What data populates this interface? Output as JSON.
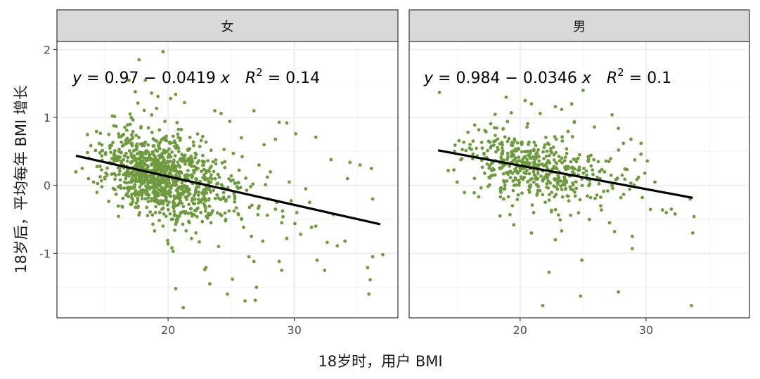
{
  "chart_data": {
    "type": "scatter",
    "xlabel": "18岁时，用户 BMI",
    "ylabel": "18岁后，平均每年 BMI 增长",
    "xlim": [
      11.2,
      38.2
    ],
    "ylim": [
      -1.95,
      2.12
    ],
    "xticks": [
      20,
      30
    ],
    "yticks": [
      -1,
      0,
      1,
      2
    ],
    "grid": true,
    "point_color": "#6f9a3f",
    "line_color": "#000000",
    "panels": [
      {
        "strip": "女",
        "eq_y": "y",
        "eq_body": " = 0.97 − 0.0419 ",
        "eq_x": "x",
        "eq_r": "R",
        "eq_sup": "2",
        "eq_tail": " = 0.14",
        "intercept": 0.97,
        "slope": -0.0419,
        "r2": 0.14,
        "line_x": [
          12.7,
          36.8
        ],
        "outliers": [
          [
            17.7,
            1.85
          ],
          [
            19.6,
            1.97
          ],
          [
            18.2,
            1.55
          ],
          [
            16.9,
            1.55
          ],
          [
            17.4,
            1.38
          ],
          [
            18.7,
            1.36
          ],
          [
            19.2,
            1.31
          ],
          [
            20.2,
            1.28
          ],
          [
            21.3,
            1.22
          ],
          [
            20.6,
            1.34
          ],
          [
            23.7,
            1.1
          ],
          [
            24.2,
            1.06
          ],
          [
            26.8,
            1.1
          ],
          [
            28.8,
            0.93
          ],
          [
            29.4,
            0.92
          ],
          [
            30.1,
            0.76
          ],
          [
            31.7,
            0.71
          ],
          [
            28.5,
            0.68
          ],
          [
            27.6,
            0.6
          ],
          [
            25.8,
            0.7
          ],
          [
            32.9,
            0.38
          ],
          [
            34.4,
            0.34
          ],
          [
            35.2,
            0.3
          ],
          [
            36.1,
            0.25
          ],
          [
            34.2,
            0.1
          ],
          [
            36.2,
            -0.2
          ],
          [
            33.1,
            -0.43
          ],
          [
            31.7,
            -0.6
          ],
          [
            30.5,
            -0.72
          ],
          [
            29.4,
            -0.78
          ],
          [
            32.6,
            -0.84
          ],
          [
            34.0,
            -0.82
          ],
          [
            33.4,
            -0.89
          ],
          [
            36.2,
            -1.05
          ],
          [
            37.0,
            -1.02
          ],
          [
            35.8,
            -1.21
          ],
          [
            31.8,
            -1.1
          ],
          [
            32.4,
            -1.25
          ],
          [
            28.8,
            -1.12
          ],
          [
            29.0,
            -1.25
          ],
          [
            26.4,
            -1.05
          ],
          [
            26.8,
            -1.12
          ],
          [
            25.1,
            -1.38
          ],
          [
            24.7,
            -1.6
          ],
          [
            26.1,
            -1.7
          ],
          [
            26.9,
            -1.69
          ],
          [
            27.0,
            -1.5
          ],
          [
            26.6,
            -0.75
          ],
          [
            27.5,
            -0.82
          ],
          [
            23.0,
            -1.21
          ],
          [
            22.9,
            -1.24
          ],
          [
            23.3,
            -1.45
          ],
          [
            21.2,
            -1.8
          ],
          [
            20.6,
            -1.52
          ],
          [
            20.3,
            -0.92
          ],
          [
            20.0,
            -0.86
          ],
          [
            20.4,
            -0.97
          ],
          [
            35.9,
            -1.6
          ],
          [
            36.0,
            -1.39
          ],
          [
            25.8,
            -0.49
          ],
          [
            12.7,
            0.2
          ],
          [
            13.7,
            0.1
          ],
          [
            14.6,
            0.48
          ],
          [
            13.2,
            0.25
          ],
          [
            14.1,
            0.05
          ],
          [
            15.4,
            0.55
          ],
          [
            16.5,
            0.6
          ],
          [
            17.0,
            0.9
          ],
          [
            24.5,
            0.35
          ],
          [
            27.2,
            0.3
          ],
          [
            28.1,
            0.2
          ],
          [
            29.6,
            0.05
          ],
          [
            30.9,
            -0.05
          ],
          [
            31.2,
            -0.25
          ],
          [
            30.2,
            -0.4
          ],
          [
            29.0,
            -0.55
          ],
          [
            27.9,
            -0.2
          ],
          [
            28.5,
            -0.35
          ],
          [
            22.2,
            -0.7
          ],
          [
            24.0,
            -0.9
          ],
          [
            23.4,
            -0.55
          ],
          [
            21.9,
            -0.45
          ],
          [
            19.0,
            -0.4
          ],
          [
            19.6,
            -0.6
          ],
          [
            17.1,
            -0.28
          ]
        ],
        "cluster": {
          "seed": 7,
          "n": 1050,
          "cx": 19.6,
          "sx": 2.3,
          "skew": 1.0,
          "sy": 0.3,
          "xmin": 13.5,
          "xmax": 33.5
        }
      },
      {
        "strip": "男",
        "eq_y": "y",
        "eq_body": " = 0.984 − 0.0346 ",
        "eq_x": "x",
        "eq_r": "R",
        "eq_sup": "2",
        "eq_tail": " = 0.1",
        "intercept": 0.984,
        "slope": -0.0346,
        "r2": 0.1,
        "line_x": [
          13.5,
          33.7
        ],
        "outliers": [
          [
            13.6,
            1.37
          ],
          [
            16.4,
            0.89
          ],
          [
            17.3,
            0.79
          ],
          [
            17.5,
            0.65
          ],
          [
            18.9,
            1.3
          ],
          [
            19.3,
            1.07
          ],
          [
            19.0,
            0.94
          ],
          [
            20.4,
            1.25
          ],
          [
            20.9,
            1.2
          ],
          [
            21.6,
            1.06
          ],
          [
            22.8,
            1.16
          ],
          [
            23.3,
            1.12
          ],
          [
            24.1,
            1.2
          ],
          [
            24.3,
            0.93
          ],
          [
            25.0,
            1.4
          ],
          [
            25.9,
            0.86
          ],
          [
            27.3,
            1.04
          ],
          [
            27.8,
            0.84
          ],
          [
            28.2,
            0.62
          ],
          [
            28.8,
            0.68
          ],
          [
            29.6,
            0.62
          ],
          [
            30.1,
            0.36
          ],
          [
            29.9,
            0.18
          ],
          [
            29.4,
            0.12
          ],
          [
            31.3,
            -0.36
          ],
          [
            31.6,
            -0.4
          ],
          [
            32.3,
            -0.42
          ],
          [
            32.0,
            -0.35
          ],
          [
            33.5,
            -0.2
          ],
          [
            33.8,
            -0.46
          ],
          [
            33.7,
            -0.7
          ],
          [
            28.9,
            -0.75
          ],
          [
            28.9,
            -0.93
          ],
          [
            27.5,
            -0.68
          ],
          [
            27.1,
            -0.55
          ],
          [
            25.5,
            -0.5
          ],
          [
            24.9,
            -1.1
          ],
          [
            24.8,
            -1.63
          ],
          [
            27.8,
            -1.57
          ],
          [
            33.6,
            -1.77
          ],
          [
            23.3,
            -0.67
          ],
          [
            22.8,
            -0.8
          ],
          [
            22.3,
            -1.28
          ],
          [
            21.8,
            -1.77
          ],
          [
            20.9,
            -0.7
          ],
          [
            19.5,
            -0.58
          ],
          [
            19.2,
            -0.43
          ],
          [
            18.4,
            -0.45
          ],
          [
            18.7,
            -0.2
          ],
          [
            15.0,
            0.05
          ],
          [
            14.3,
            0.22
          ],
          [
            15.3,
            0.38
          ],
          [
            16.0,
            0.55
          ],
          [
            26.2,
            0.35
          ],
          [
            26.7,
            0.2
          ],
          [
            27.7,
            0.1
          ],
          [
            28.1,
            0.15
          ],
          [
            26.4,
            -0.3
          ],
          [
            25.6,
            -0.18
          ],
          [
            30.7,
            0.05
          ]
        ],
        "cluster": {
          "seed": 23,
          "n": 470,
          "cx": 20.9,
          "sx": 2.7,
          "skew": 0.8,
          "sy": 0.24,
          "xmin": 14.3,
          "xmax": 30.5
        }
      }
    ]
  }
}
